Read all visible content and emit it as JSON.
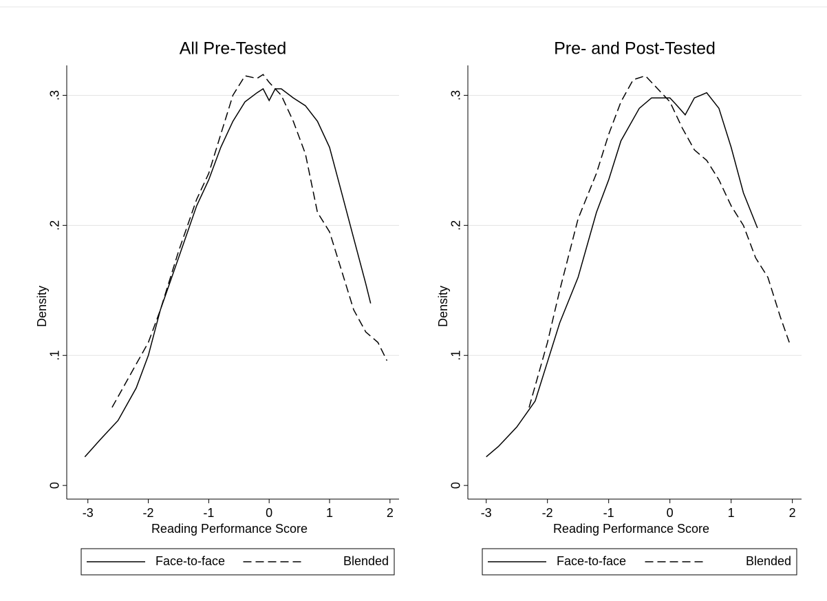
{
  "chart_data": [
    {
      "type": "line",
      "title": "All Pre-Tested",
      "xlabel": "Reading Performance Score",
      "ylabel": "Density",
      "xlim": [
        -3.35,
        2.15
      ],
      "ylim": [
        -0.0105,
        0.323
      ],
      "xticks": [
        -3,
        -2,
        -1,
        0,
        1,
        2
      ],
      "yticks": [
        0,
        {
          "value": 0.1,
          "label": ".1"
        },
        {
          "value": 0.2,
          "label": ".2"
        },
        {
          "value": 0.3,
          "label": ".3"
        }
      ],
      "grid": true,
      "legend": "bottom",
      "series": [
        {
          "name": "Face-to-face",
          "color": "#000000",
          "linestyle": "solid",
          "x": [
            -3.05,
            -2.8,
            -2.5,
            -2.2,
            -2.0,
            -1.8,
            -1.5,
            -1.2,
            -1.0,
            -0.8,
            -0.6,
            -0.4,
            -0.2,
            -0.1,
            0,
            0.1,
            0.2,
            0.4,
            0.6,
            0.8,
            1.0,
            1.2,
            1.4,
            1.6,
            1.68
          ],
          "values": [
            0.022,
            0.035,
            0.05,
            0.075,
            0.1,
            0.135,
            0.175,
            0.215,
            0.235,
            0.26,
            0.28,
            0.295,
            0.302,
            0.305,
            0.296,
            0.305,
            0.305,
            0.298,
            0.292,
            0.28,
            0.26,
            0.225,
            0.19,
            0.155,
            0.14
          ]
        },
        {
          "name": "Blended",
          "color": "#000000",
          "linestyle": "dashed",
          "x": [
            -2.6,
            -2.3,
            -2.0,
            -1.8,
            -1.5,
            -1.2,
            -1.0,
            -0.8,
            -0.6,
            -0.4,
            -0.2,
            -0.1,
            0,
            0.2,
            0.4,
            0.6,
            0.8,
            1.0,
            1.2,
            1.4,
            1.6,
            1.8,
            1.95
          ],
          "values": [
            0.06,
            0.085,
            0.11,
            0.135,
            0.18,
            0.22,
            0.24,
            0.27,
            0.3,
            0.315,
            0.313,
            0.316,
            0.31,
            0.3,
            0.28,
            0.255,
            0.21,
            0.195,
            0.165,
            0.135,
            0.118,
            0.11,
            0.096
          ]
        }
      ]
    },
    {
      "type": "line",
      "title": "Pre- and Post-Tested",
      "xlabel": "Reading Performance Score",
      "ylabel": "Density",
      "xlim": [
        -3.3,
        2.15
      ],
      "ylim": [
        -0.0105,
        0.323
      ],
      "xticks": [
        -3,
        -2,
        -1,
        0,
        1,
        2
      ],
      "yticks": [
        0,
        {
          "value": 0.1,
          "label": ".1"
        },
        {
          "value": 0.2,
          "label": ".2"
        },
        {
          "value": 0.3,
          "label": ".3"
        }
      ],
      "grid": true,
      "legend": "bottom",
      "series": [
        {
          "name": "Face-to-face",
          "color": "#000000",
          "linestyle": "solid",
          "x": [
            -3.0,
            -2.8,
            -2.5,
            -2.2,
            -2.0,
            -1.8,
            -1.5,
            -1.2,
            -1.0,
            -0.8,
            -0.5,
            -0.3,
            -0.1,
            0,
            0.1,
            0.25,
            0.4,
            0.6,
            0.8,
            1.0,
            1.2,
            1.43
          ],
          "values": [
            0.022,
            0.03,
            0.045,
            0.065,
            0.095,
            0.125,
            0.16,
            0.21,
            0.235,
            0.265,
            0.29,
            0.298,
            0.298,
            0.298,
            0.293,
            0.285,
            0.298,
            0.302,
            0.29,
            0.26,
            0.225,
            0.198
          ]
        },
        {
          "name": "Blended",
          "color": "#000000",
          "linestyle": "dashed",
          "x": [
            -2.3,
            -2.0,
            -1.8,
            -1.5,
            -1.2,
            -1.0,
            -0.8,
            -0.6,
            -0.4,
            -0.2,
            0,
            0.2,
            0.4,
            0.6,
            0.8,
            1.0,
            1.2,
            1.4,
            1.6,
            1.8,
            1.95
          ],
          "values": [
            0.06,
            0.11,
            0.15,
            0.205,
            0.24,
            0.27,
            0.295,
            0.312,
            0.315,
            0.305,
            0.295,
            0.275,
            0.258,
            0.25,
            0.235,
            0.215,
            0.2,
            0.175,
            0.16,
            0.13,
            0.11
          ]
        }
      ]
    }
  ]
}
